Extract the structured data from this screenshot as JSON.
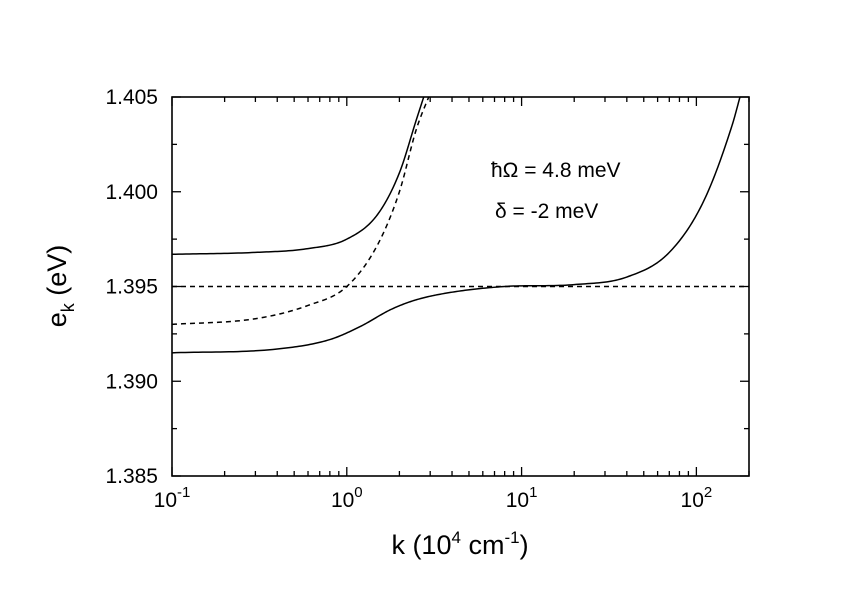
{
  "chart_data": {
    "type": "line",
    "xlabel": {
      "base": "k (10",
      "exp": "4",
      "mid": " cm",
      "exp2": "-1",
      "end": ")"
    },
    "ylabel": {
      "base": "e",
      "sub": "k",
      "end": " (eV)"
    },
    "xscale": "log",
    "xlim": [
      0.1,
      200
    ],
    "ylim": [
      1.385,
      1.405
    ],
    "x_ticks": [
      {
        "value": 0.1,
        "base": "10",
        "exp": "-1"
      },
      {
        "value": 1,
        "base": "10",
        "exp": "0"
      },
      {
        "value": 10,
        "base": "10",
        "exp": "1"
      },
      {
        "value": 100,
        "base": "10",
        "exp": "2"
      }
    ],
    "y_ticks": [
      {
        "value": 1.385,
        "label": "1.385"
      },
      {
        "value": 1.39,
        "label": "1.390"
      },
      {
        "value": 1.395,
        "label": "1.395"
      },
      {
        "value": 1.4,
        "label": "1.400"
      },
      {
        "value": 1.405,
        "label": "1.405"
      }
    ],
    "grid": false,
    "annotations": [
      "ħΩ = 4.8 meV",
      "δ = -2 meV"
    ],
    "series": [
      {
        "style": "solid",
        "x": [
          0.1,
          0.3,
          0.6,
          1.0,
          1.5,
          2.0,
          2.5,
          2.8
        ],
        "y": [
          1.3967,
          1.3968,
          1.397,
          1.3975,
          1.3988,
          1.401,
          1.4038,
          1.4052
        ]
      },
      {
        "style": "dashed",
        "x": [
          0.1,
          0.3,
          0.6,
          1.0,
          1.5,
          2.0,
          2.5,
          3.0
        ],
        "y": [
          1.393,
          1.3933,
          1.394,
          1.395,
          1.3972,
          1.4,
          1.4033,
          1.4052
        ]
      },
      {
        "style": "solid",
        "x": [
          0.1,
          0.4,
          0.8,
          1.2,
          1.8,
          2.5,
          4.0,
          8.0,
          20,
          40,
          70,
          110,
          160,
          180
        ],
        "y": [
          1.3915,
          1.3917,
          1.3922,
          1.3929,
          1.3938,
          1.3943,
          1.3947,
          1.395,
          1.3951,
          1.3955,
          1.3968,
          1.3995,
          1.4035,
          1.4052
        ]
      },
      {
        "style": "dashed",
        "x": [
          0.1,
          200
        ],
        "y": [
          1.395,
          1.395
        ]
      }
    ]
  }
}
